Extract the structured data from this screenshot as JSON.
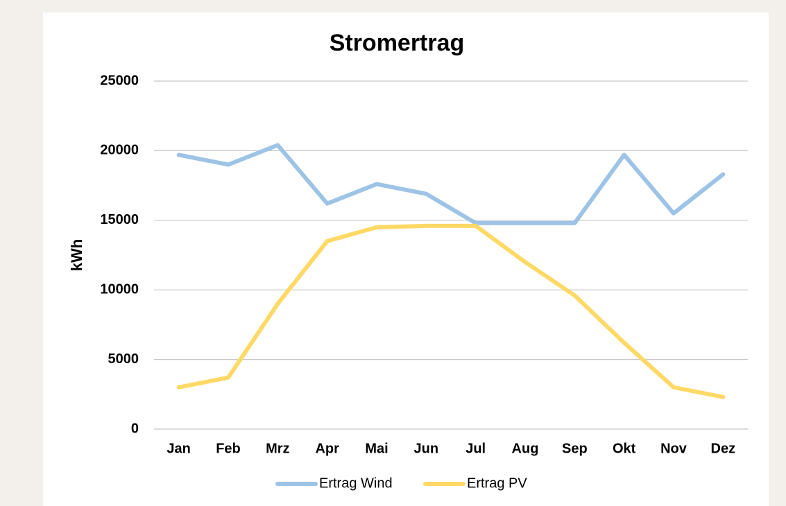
{
  "chart_data": {
    "type": "line",
    "title": "Stromertrag",
    "y_label": "kWh",
    "categories": [
      "Jan",
      "Feb",
      "Mrz",
      "Apr",
      "Mai",
      "Jun",
      "Jul",
      "Aug",
      "Sep",
      "Okt",
      "Nov",
      "Dez"
    ],
    "series": [
      {
        "name": "Ertrag Wind",
        "color": "#9dc3e6",
        "values": [
          19700,
          19000,
          20400,
          16200,
          17600,
          16900,
          14800,
          14800,
          14800,
          19700,
          15500,
          18300
        ]
      },
      {
        "name": "Ertrag PV",
        "color": "#ffd966",
        "values": [
          3000,
          3700,
          9000,
          13500,
          14500,
          14600,
          14600,
          12000,
          9600,
          6200,
          3000,
          2300
        ]
      }
    ],
    "ylim": [
      0,
      25000
    ],
    "yticks": [
      0,
      5000,
      10000,
      15000,
      20000,
      25000
    ],
    "grid": true,
    "legend": "bottom"
  }
}
